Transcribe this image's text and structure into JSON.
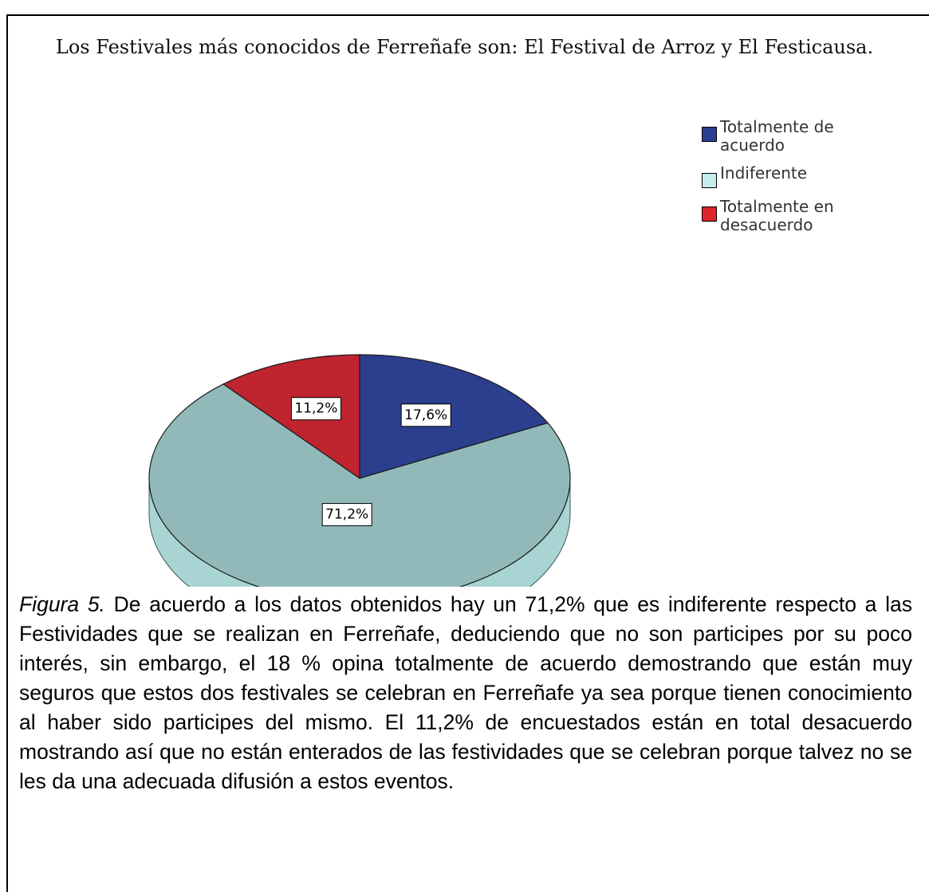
{
  "chart_data": {
    "type": "pie",
    "title": "Los Festivales más conocidos de Ferreñafe son: El Festival de Arroz y El Festicausa.",
    "categories": [
      "Totalmente de acuerdo",
      "Indiferente",
      "Totalmente en desacuerdo"
    ],
    "values": [
      17.6,
      71.2,
      11.2
    ],
    "value_labels": [
      "17,6%",
      "71,2%",
      "11,2%"
    ],
    "colors": [
      "#2c3e8e",
      "#92b9b9",
      "#c0242e"
    ],
    "legend_colors": [
      "#2c3e8e",
      "#c4ecec",
      "#e0242e"
    ],
    "legend": "top-right",
    "figure_label": "Figura 5.",
    "caption": "De acuerdo a los datos obtenidos hay un 71,2% que es indiferente respecto a las Festividades que se realizan en Ferreñafe, deduciendo que no son participes por su poco interés, sin embargo, el 18 % opina totalmente de acuerdo demostrando que están muy seguros que estos dos festivales se celebran en Ferreñafe ya sea porque tienen conocimiento al haber sido participes del mismo. El 11,2% de encuestados están en total desacuerdo mostrando así que no están enterados de las festividades que se celebran porque talvez no se les da una adecuada difusión a estos eventos."
  }
}
